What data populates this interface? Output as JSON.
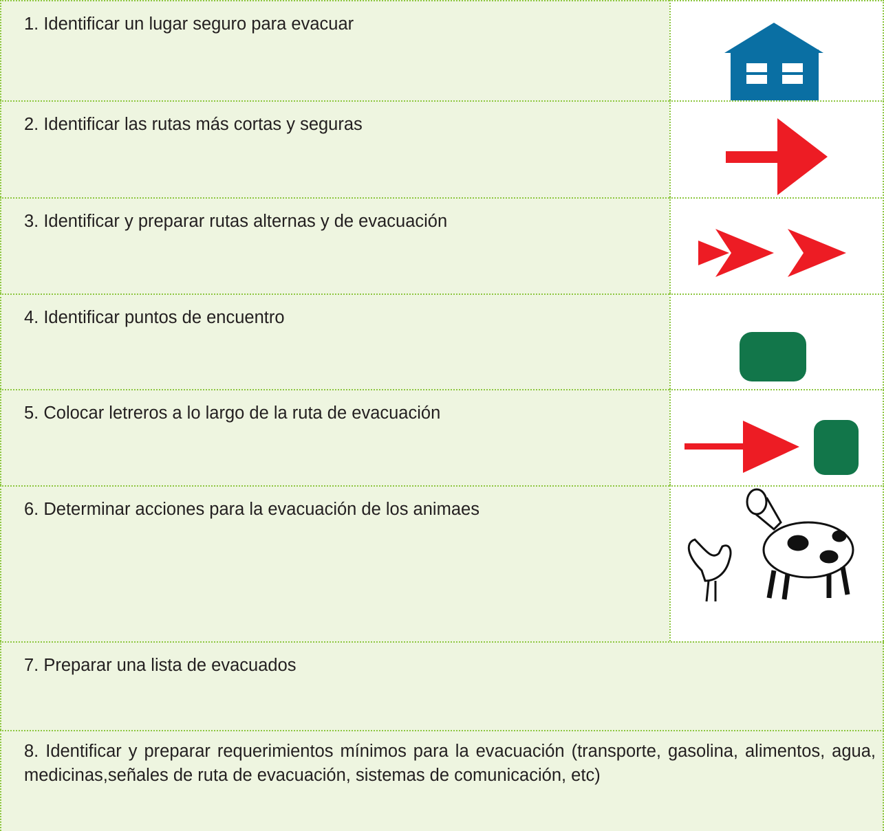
{
  "table": {
    "rows": [
      "1. Identificar un lugar seguro para evacuar",
      "2. Identificar las rutas más cortas y seguras",
      "3. Identificar y preparar rutas alternas y de evacuación",
      "4. Identificar puntos de encuentro",
      "5. Colocar letreros a lo largo de la ruta de evacuación",
      "6. Determinar acciones para la evacuación de los animaes",
      "7. Preparar una lista de evacuados",
      "8. Identificar y preparar requerimientos mínimos para la evacuación (transporte, gasolina, alimentos, agua, medicinas,señales de ruta de evacuación, sistemas de comunicación, etc)"
    ]
  }
}
